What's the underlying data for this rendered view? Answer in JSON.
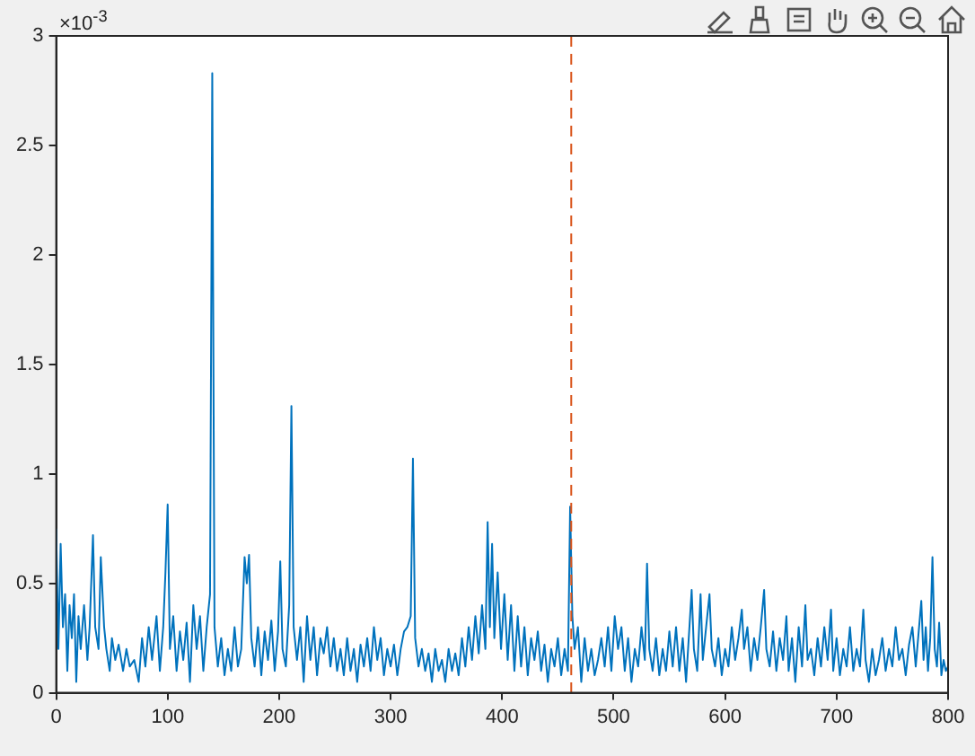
{
  "chart_data": {
    "type": "line",
    "x": [
      0,
      2,
      4,
      6,
      8,
      10,
      12,
      14,
      16,
      18,
      20,
      22,
      25,
      28,
      30,
      33,
      35,
      38,
      40,
      43,
      45,
      48,
      50,
      53,
      56,
      60,
      63,
      66,
      70,
      74,
      77,
      80,
      83,
      86,
      90,
      93,
      96,
      98,
      100,
      102,
      105,
      108,
      111,
      114,
      117,
      120,
      123,
      126,
      129,
      132,
      135,
      138,
      140,
      142,
      145,
      148,
      151,
      154,
      157,
      160,
      163,
      166,
      169,
      171,
      173,
      175,
      178,
      181,
      184,
      187,
      190,
      193,
      196,
      199,
      201,
      203,
      206,
      209,
      211,
      213,
      216,
      219,
      222,
      225,
      228,
      231,
      234,
      237,
      240,
      243,
      246,
      249,
      252,
      255,
      258,
      261,
      264,
      267,
      270,
      273,
      276,
      279,
      282,
      285,
      288,
      291,
      294,
      297,
      300,
      303,
      306,
      309,
      312,
      315,
      318,
      320,
      322,
      325,
      328,
      331,
      334,
      337,
      340,
      343,
      346,
      349,
      352,
      355,
      358,
      361,
      364,
      367,
      370,
      373,
      376,
      379,
      382,
      385,
      387,
      389,
      391,
      393,
      396,
      399,
      402,
      405,
      408,
      411,
      414,
      417,
      420,
      423,
      426,
      429,
      432,
      435,
      438,
      441,
      444,
      447,
      450,
      453,
      456,
      459,
      461,
      463,
      465,
      468,
      471,
      474,
      477,
      480,
      483,
      486,
      489,
      492,
      495,
      498,
      501,
      504,
      507,
      510,
      513,
      516,
      519,
      522,
      525,
      528,
      530,
      532,
      535,
      538,
      541,
      544,
      547,
      550,
      553,
      556,
      559,
      562,
      565,
      568,
      570,
      572,
      575,
      578,
      580,
      583,
      586,
      588,
      591,
      594,
      597,
      600,
      603,
      606,
      609,
      612,
      615,
      617,
      620,
      623,
      626,
      629,
      632,
      635,
      637,
      640,
      643,
      646,
      649,
      652,
      655,
      657,
      660,
      663,
      666,
      669,
      672,
      674,
      677,
      680,
      683,
      686,
      689,
      692,
      695,
      697,
      700,
      703,
      706,
      709,
      712,
      715,
      718,
      721,
      724,
      726,
      729,
      732,
      735,
      738,
      741,
      744,
      747,
      750,
      753,
      756,
      759,
      762,
      765,
      768,
      771,
      774,
      776,
      778,
      780,
      782,
      784,
      786,
      788,
      790,
      792,
      794,
      796,
      798,
      800
    ],
    "series": [
      {
        "color": "#0072bd",
        "values": [
          0.75,
          0.2,
          0.68,
          0.3,
          0.45,
          0.1,
          0.4,
          0.25,
          0.45,
          0.05,
          0.35,
          0.2,
          0.4,
          0.15,
          0.3,
          0.72,
          0.3,
          0.2,
          0.62,
          0.3,
          0.2,
          0.1,
          0.25,
          0.15,
          0.22,
          0.1,
          0.2,
          0.12,
          0.15,
          0.05,
          0.25,
          0.12,
          0.3,
          0.15,
          0.35,
          0.1,
          0.3,
          0.55,
          0.86,
          0.2,
          0.35,
          0.1,
          0.28,
          0.15,
          0.32,
          0.05,
          0.4,
          0.2,
          0.35,
          0.1,
          0.3,
          0.45,
          2.83,
          0.3,
          0.12,
          0.25,
          0.08,
          0.2,
          0.1,
          0.3,
          0.12,
          0.2,
          0.62,
          0.5,
          0.63,
          0.25,
          0.12,
          0.3,
          0.08,
          0.28,
          0.15,
          0.33,
          0.1,
          0.28,
          0.6,
          0.2,
          0.12,
          0.4,
          1.31,
          0.3,
          0.15,
          0.3,
          0.05,
          0.35,
          0.15,
          0.3,
          0.08,
          0.25,
          0.18,
          0.3,
          0.12,
          0.25,
          0.1,
          0.2,
          0.08,
          0.25,
          0.1,
          0.2,
          0.05,
          0.22,
          0.12,
          0.25,
          0.1,
          0.3,
          0.15,
          0.25,
          0.08,
          0.2,
          0.12,
          0.22,
          0.08,
          0.2,
          0.28,
          0.3,
          0.35,
          1.07,
          0.25,
          0.12,
          0.2,
          0.1,
          0.18,
          0.05,
          0.2,
          0.1,
          0.15,
          0.05,
          0.2,
          0.1,
          0.18,
          0.08,
          0.25,
          0.12,
          0.3,
          0.15,
          0.35,
          0.18,
          0.4,
          0.2,
          0.78,
          0.3,
          0.68,
          0.25,
          0.55,
          0.2,
          0.45,
          0.15,
          0.4,
          0.1,
          0.35,
          0.12,
          0.3,
          0.08,
          0.25,
          0.15,
          0.28,
          0.1,
          0.22,
          0.05,
          0.2,
          0.12,
          0.25,
          0.08,
          0.2,
          0.1,
          0.85,
          0.35,
          0.2,
          0.3,
          0.05,
          0.25,
          0.1,
          0.2,
          0.08,
          0.15,
          0.25,
          0.12,
          0.3,
          0.1,
          0.35,
          0.2,
          0.3,
          0.1,
          0.25,
          0.05,
          0.2,
          0.12,
          0.3,
          0.15,
          0.59,
          0.2,
          0.1,
          0.25,
          0.08,
          0.2,
          0.1,
          0.28,
          0.12,
          0.3,
          0.1,
          0.25,
          0.05,
          0.3,
          0.47,
          0.2,
          0.1,
          0.45,
          0.15,
          0.3,
          0.45,
          0.2,
          0.12,
          0.25,
          0.08,
          0.2,
          0.12,
          0.3,
          0.15,
          0.25,
          0.38,
          0.2,
          0.3,
          0.1,
          0.25,
          0.15,
          0.3,
          0.47,
          0.2,
          0.12,
          0.28,
          0.1,
          0.25,
          0.15,
          0.35,
          0.1,
          0.25,
          0.05,
          0.3,
          0.12,
          0.4,
          0.15,
          0.2,
          0.08,
          0.25,
          0.12,
          0.3,
          0.15,
          0.38,
          0.1,
          0.25,
          0.08,
          0.2,
          0.12,
          0.3,
          0.1,
          0.2,
          0.12,
          0.38,
          0.15,
          0.05,
          0.2,
          0.08,
          0.15,
          0.25,
          0.1,
          0.2,
          0.12,
          0.3,
          0.15,
          0.2,
          0.08,
          0.22,
          0.3,
          0.12,
          0.3,
          0.42,
          0.15,
          0.3,
          0.1,
          0.25,
          0.62,
          0.2,
          0.12,
          0.32,
          0.08,
          0.15,
          0.1,
          0.12
        ]
      }
    ],
    "xlim": [
      0,
      800
    ],
    "xticks": [
      0,
      100,
      200,
      300,
      400,
      500,
      600,
      700,
      800
    ],
    "ylim": [
      0,
      3
    ],
    "yticks": [
      0,
      0.5,
      1,
      1.5,
      2,
      2.5,
      3
    ],
    "annotations": [
      "×10$^{-3}$"
    ],
    "ref_lines": [
      {
        "axis": "x",
        "value": 462,
        "color": "#d95319",
        "line_style": "dashed"
      }
    ],
    "grid": false,
    "legend": false,
    "marker": "none",
    "line_style": "solid"
  }
}
